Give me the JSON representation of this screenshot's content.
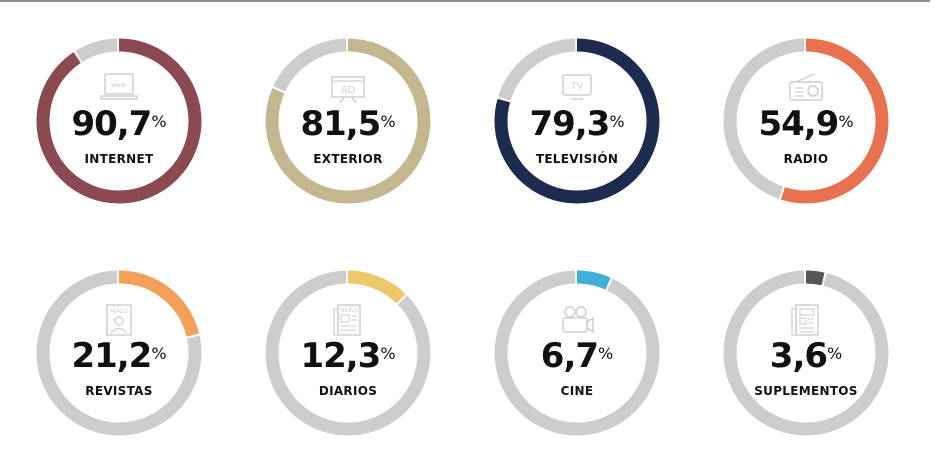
{
  "chart_data": {
    "type": "pie",
    "series": [
      {
        "label": "INTERNET",
        "display": "90,7",
        "unit": "%",
        "value": 90.7,
        "color": "#8b4a52",
        "icon": "www-monitor-icon"
      },
      {
        "label": "EXTERIOR",
        "display": "81,5",
        "unit": "%",
        "value": 81.5,
        "color": "#c4b68f",
        "icon": "ad-billboard-icon"
      },
      {
        "label": "TELEVISIÓN",
        "display": "79,3",
        "unit": "%",
        "value": 79.3,
        "color": "#1d2b4e",
        "icon": "tv-icon"
      },
      {
        "label": "RADIO",
        "display": "54,9",
        "unit": "%",
        "value": 54.9,
        "color": "#e8714f",
        "icon": "radio-icon"
      },
      {
        "label": "REVISTAS",
        "display": "21,2",
        "unit": "%",
        "value": 21.2,
        "color": "#f2a05a",
        "icon": "magazine-icon"
      },
      {
        "label": "DIARIOS",
        "display": "12,3",
        "unit": "%",
        "value": 12.3,
        "color": "#edc86a",
        "icon": "newspaper-icon"
      },
      {
        "label": "CINE",
        "display": "6,7",
        "unit": "%",
        "value": 6.7,
        "color": "#3fb0d8",
        "icon": "movie-camera-icon"
      },
      {
        "label": "SUPLEMENTOS",
        "display": "3,6",
        "unit": "%",
        "value": 3.6,
        "color": "#555555",
        "icon": "supplement-icon"
      }
    ],
    "track_color": "#cdcdcd",
    "max": 100
  }
}
